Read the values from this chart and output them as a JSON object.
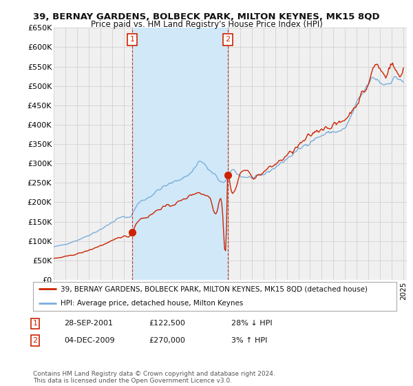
{
  "title": "39, BERNAY GARDENS, BOLBECK PARK, MILTON KEYNES, MK15 8QD",
  "subtitle": "Price paid vs. HM Land Registry's House Price Index (HPI)",
  "ylabel_ticks": [
    "£0",
    "£50K",
    "£100K",
    "£150K",
    "£200K",
    "£250K",
    "£300K",
    "£350K",
    "£400K",
    "£450K",
    "£500K",
    "£550K",
    "£600K",
    "£650K"
  ],
  "ytick_values": [
    0,
    50000,
    100000,
    150000,
    200000,
    250000,
    300000,
    350000,
    400000,
    450000,
    500000,
    550000,
    600000,
    650000
  ],
  "hpi_color": "#7aaddb",
  "price_color": "#cc2200",
  "sale1_x": 2001.75,
  "sale1_price": 122500,
  "sale2_x": 2009.92,
  "sale2_price": 270000,
  "sale1_date": "28-SEP-2001",
  "sale1_note": "28% ↓ HPI",
  "sale2_date": "04-DEC-2009",
  "sale2_note": "3% ↑ HPI",
  "legend_line1": "39, BERNAY GARDENS, BOLBECK PARK, MILTON KEYNES, MK15 8QD (detached house)",
  "legend_line2": "HPI: Average price, detached house, Milton Keynes",
  "footnote": "Contains HM Land Registry data © Crown copyright and database right 2024.\nThis data is licensed under the Open Government Licence v3.0.",
  "shade_color": "#d0e8f8",
  "grid_color": "#cccccc",
  "plot_bg": "#f5f5f5"
}
